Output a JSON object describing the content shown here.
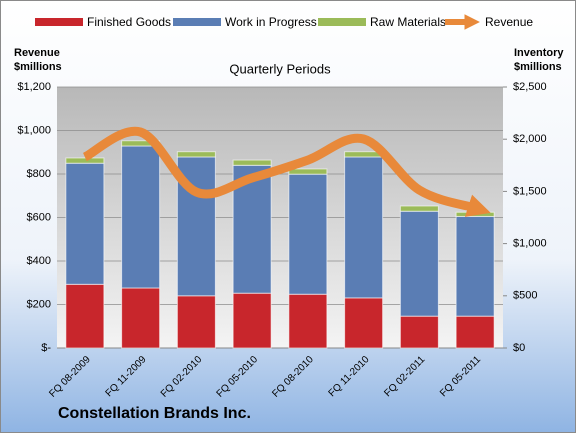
{
  "chart_data": {
    "type": "bar",
    "title": "Quarterly Periods",
    "footer": "Constellation Brands Inc.",
    "y_label": [
      "Revenue",
      "$millions"
    ],
    "y2_label": [
      "Inventory",
      "$millions"
    ],
    "categories": [
      "FQ 08-2009",
      "FQ 11-2009",
      "FQ 02-2010",
      "FQ 05-2010",
      "FQ 08-2010",
      "FQ 11-2010",
      "FQ 02-2011",
      "FQ 05-2011"
    ],
    "series": [
      {
        "name": "Finished Goods",
        "color": "#c8262c",
        "axis": "y2",
        "values": [
          610,
          575,
          500,
          525,
          515,
          480,
          305,
          305
        ]
      },
      {
        "name": "Work in Progress",
        "color": "#5a7db4",
        "axis": "y2",
        "values": [
          1160,
          1360,
          1330,
          1225,
          1150,
          1350,
          1005,
          955
        ]
      },
      {
        "name": "Raw Materials",
        "color": "#9bbb59",
        "axis": "y2",
        "values": [
          50,
          50,
          50,
          50,
          50,
          50,
          50,
          40
        ]
      },
      {
        "name": "Revenue",
        "color": "#e8893a",
        "type": "line",
        "values": [
          878,
          993,
          717,
          782,
          864,
          961,
          726,
          644
        ]
      }
    ],
    "ylim": [
      0,
      1200
    ],
    "yticks": [
      {
        "value": 0,
        "label": "$-"
      },
      {
        "value": 200,
        "label": "$200"
      },
      {
        "value": 400,
        "label": "$400"
      },
      {
        "value": 600,
        "label": "$600"
      },
      {
        "value": 800,
        "label": "$800"
      },
      {
        "value": 1000,
        "label": "$1,000"
      },
      {
        "value": 1200,
        "label": "$1,200"
      }
    ],
    "y2lim": [
      0,
      2500
    ],
    "y2ticks": [
      {
        "value": 0,
        "label": "$0"
      },
      {
        "value": 500,
        "label": "$500"
      },
      {
        "value": 1000,
        "label": "$1,000"
      },
      {
        "value": 1500,
        "label": "$1,500"
      },
      {
        "value": 2000,
        "label": "$2,000"
      },
      {
        "value": 2500,
        "label": "$2,500"
      }
    ],
    "grid": true
  }
}
